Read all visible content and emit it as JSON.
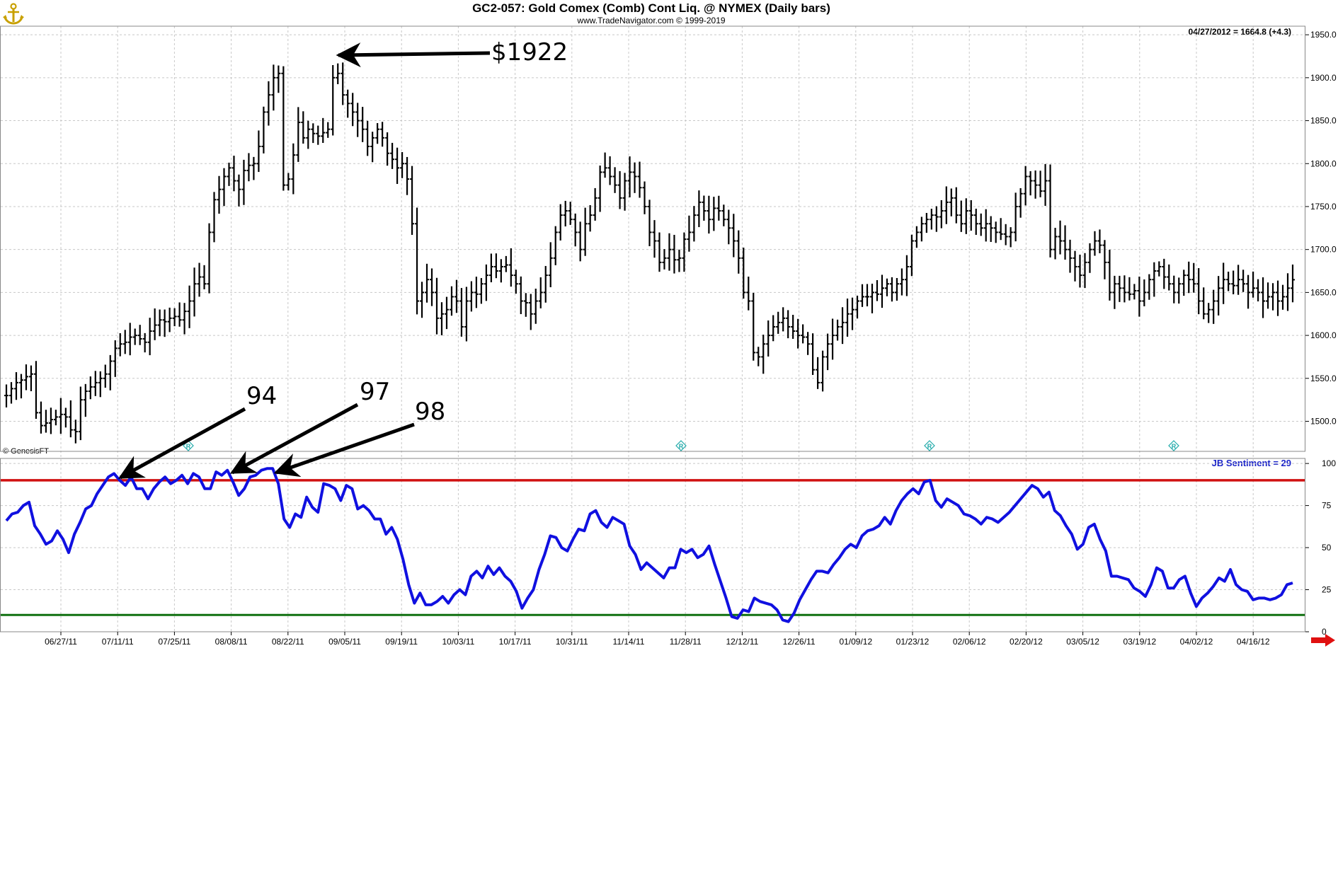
{
  "header": {
    "title": "GC2-057:  Gold Comex (Comb) Cont Liq. @ NYMEX  (Daily bars)",
    "subtitle": "www.TradeNavigator.com © 1999-2019",
    "logo_icon": "anchor-logo-icon"
  },
  "last_quote": "04/27/2012 = 1664.8 (+4.3)",
  "copyright": "© GenesisFT",
  "sentiment_label": "JB Sentiment = 29",
  "annotations": {
    "peak_price": "$1922",
    "s94": "94",
    "s97": "97",
    "s98": "98"
  },
  "colors": {
    "price_bars": "#000000",
    "sentiment_line": "#1010e0",
    "upper_band": "#d01010",
    "lower_band": "#107010",
    "marker": "#22aaaa",
    "grid": "#c8c8c8",
    "nav_arrow": "#e01010"
  },
  "chart_data": [
    {
      "type": "ohlc",
      "name": "Gold daily bars",
      "x_ticks": [
        "06/27/11",
        "07/11/11",
        "07/25/11",
        "08/08/11",
        "08/22/11",
        "09/05/11",
        "09/19/11",
        "10/03/11",
        "10/17/11",
        "10/31/11",
        "11/14/11",
        "11/28/11",
        "12/12/11",
        "12/26/11",
        "01/09/12",
        "01/23/12",
        "02/06/12",
        "02/20/12",
        "03/05/12",
        "03/19/12",
        "04/02/12",
        "04/16/12"
      ],
      "y_ticks": [
        "1950.0",
        "1900.0",
        "1850.0",
        "1800.0",
        "1750.0",
        "1700.0",
        "1650.0",
        "1600.0",
        "1550.0",
        "1500.0"
      ],
      "ylim": [
        1465,
        1960
      ],
      "grid": true,
      "approx_daily_closes": [
        1530,
        1538,
        1545,
        1548,
        1552,
        1555,
        1510,
        1495,
        1498,
        1502,
        1505,
        1508,
        1505,
        1490,
        1488,
        1525,
        1535,
        1540,
        1545,
        1550,
        1555,
        1570,
        1585,
        1590,
        1592,
        1598,
        1600,
        1596,
        1592,
        1605,
        1612,
        1618,
        1616,
        1620,
        1622,
        1618,
        1628,
        1640,
        1660,
        1668,
        1660,
        1720,
        1758,
        1770,
        1785,
        1795,
        1780,
        1770,
        1792,
        1798,
        1800,
        1820,
        1860,
        1880,
        1900,
        1905,
        1775,
        1782,
        1810,
        1848,
        1830,
        1840,
        1835,
        1832,
        1836,
        1840,
        1900,
        1905,
        1880,
        1870,
        1860,
        1850,
        1840,
        1820,
        1830,
        1840,
        1830,
        1812,
        1805,
        1795,
        1800,
        1782,
        1730,
        1640,
        1650,
        1665,
        1650,
        1620,
        1625,
        1630,
        1645,
        1640,
        1610,
        1640,
        1650,
        1648,
        1660,
        1670,
        1680,
        1675,
        1680,
        1682,
        1670,
        1660,
        1640,
        1638,
        1625,
        1640,
        1650,
        1670,
        1690,
        1720,
        1740,
        1745,
        1735,
        1720,
        1700,
        1730,
        1740,
        1760,
        1790,
        1795,
        1785,
        1775,
        1760,
        1780,
        1790,
        1785,
        1772,
        1750,
        1720,
        1710,
        1685,
        1690,
        1700,
        1688,
        1690,
        1712,
        1720,
        1740,
        1755,
        1745,
        1735,
        1748,
        1745,
        1735,
        1725,
        1710,
        1690,
        1650,
        1640,
        1580,
        1575,
        1590,
        1600,
        1610,
        1615,
        1620,
        1610,
        1605,
        1600,
        1598,
        1590,
        1560,
        1545,
        1575,
        1590,
        1600,
        1610,
        1615,
        1625,
        1630,
        1640,
        1645,
        1645,
        1650,
        1648,
        1655,
        1660,
        1650,
        1660,
        1665,
        1680,
        1710,
        1720,
        1730,
        1735,
        1740,
        1738,
        1745,
        1755,
        1760,
        1740,
        1730,
        1745,
        1740,
        1730,
        1725,
        1730,
        1725,
        1720,
        1718,
        1715,
        1720,
        1750,
        1765,
        1785,
        1780,
        1775,
        1768,
        1780,
        1700,
        1715,
        1710,
        1700,
        1690,
        1680,
        1670,
        1685,
        1700,
        1710,
        1705,
        1685,
        1650,
        1660,
        1655,
        1650,
        1648,
        1652,
        1640,
        1650,
        1665,
        1675,
        1680,
        1668,
        1660,
        1650,
        1660,
        1670,
        1665,
        1660,
        1640,
        1625,
        1630,
        1640,
        1655,
        1665,
        1660,
        1658,
        1665,
        1660,
        1650,
        1655,
        1650,
        1640,
        1645,
        1650,
        1640,
        1645,
        1655,
        1664.8
      ]
    },
    {
      "type": "line",
      "name": "JB Sentiment",
      "y_ticks": [
        "100",
        "75",
        "50",
        "25",
        "0"
      ],
      "ylim": [
        0,
        103
      ],
      "reference_lines": [
        90,
        10
      ],
      "values": [
        66,
        70,
        71,
        75,
        77,
        63,
        58,
        52,
        54,
        60,
        55,
        47,
        58,
        65,
        73,
        75,
        82,
        87,
        92,
        94,
        90,
        87,
        92,
        85,
        85,
        79,
        85,
        89,
        92,
        88,
        90,
        93,
        88,
        94,
        92,
        85,
        85,
        95,
        93,
        96,
        89,
        81,
        85,
        92,
        93,
        96,
        97,
        97,
        88,
        67,
        62,
        70,
        68,
        80,
        74,
        71,
        88,
        87,
        85,
        78,
        87,
        85,
        73,
        75,
        72,
        67,
        67,
        58,
        62,
        55,
        43,
        28,
        17,
        23,
        16,
        16,
        18,
        21,
        17,
        22,
        25,
        22,
        33,
        36,
        32,
        39,
        34,
        38,
        33,
        30,
        24,
        14,
        20,
        25,
        37,
        46,
        57,
        56,
        50,
        48,
        55,
        61,
        60,
        70,
        72,
        65,
        62,
        68,
        66,
        64,
        51,
        46,
        37,
        41,
        38,
        35,
        32,
        38,
        38,
        49,
        47,
        49,
        44,
        46,
        51,
        40,
        30,
        20,
        9,
        8,
        13,
        12,
        20,
        18,
        17,
        16,
        13,
        7,
        6,
        11,
        19,
        25,
        31,
        36,
        36,
        35,
        40,
        44,
        49,
        52,
        50,
        57,
        60,
        61,
        63,
        68,
        64,
        72,
        78,
        82,
        85,
        82,
        89,
        90,
        78,
        74,
        79,
        77,
        75,
        70,
        69,
        67,
        64,
        68,
        67,
        65,
        68,
        71,
        75,
        79,
        83,
        87,
        85,
        80,
        83,
        72,
        69,
        63,
        58,
        49,
        52,
        62,
        64,
        55,
        48,
        33,
        33,
        32,
        31,
        26,
        24,
        21,
        28,
        38,
        36,
        26,
        26,
        31,
        33,
        23,
        15,
        20,
        23,
        27,
        32,
        30,
        37,
        28,
        25,
        24,
        19,
        20,
        20,
        19,
        20,
        22,
        28,
        29
      ]
    }
  ]
}
